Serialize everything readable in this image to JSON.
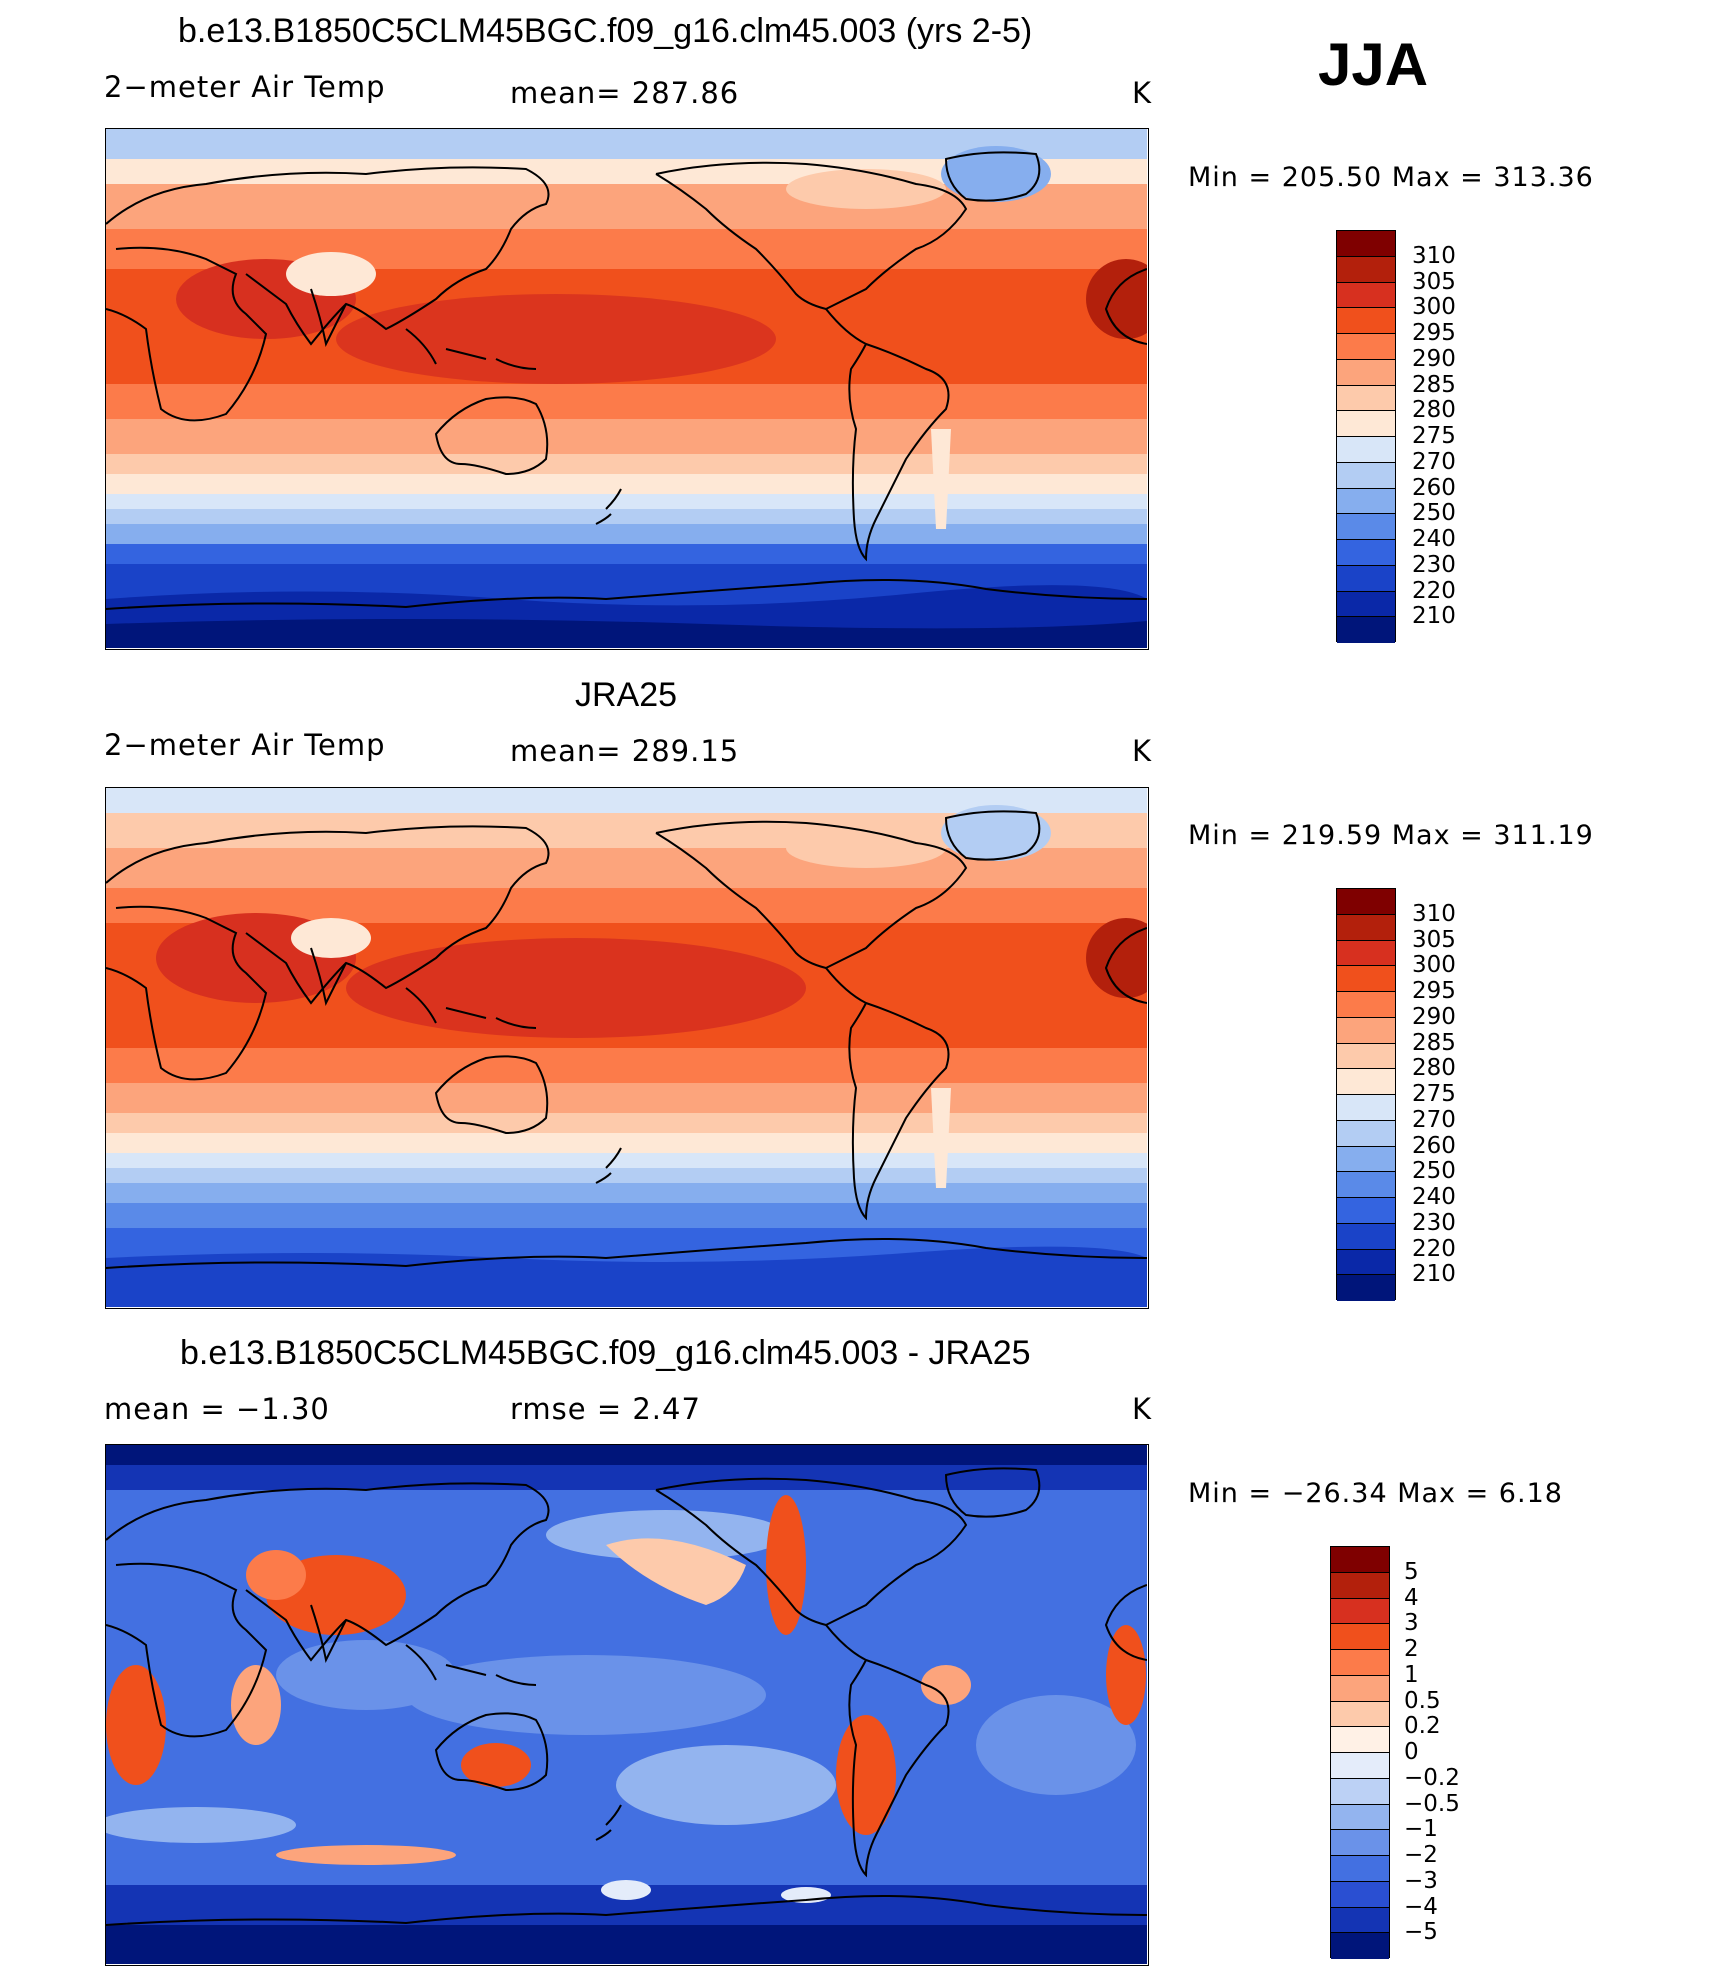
{
  "season": "JJA",
  "panels": [
    {
      "title": "b.e13.B1850C5CLM45BGC.f09_g16.clm45.003 (yrs 2-5)",
      "left_label": "2−meter Air Temp",
      "center_label": "mean=  287.86",
      "units": "K",
      "minmax": "Min  =  205.50  Max  =  313.36",
      "colorbar_labels": [
        "310",
        "305",
        "300",
        "295",
        "290",
        "285",
        "280",
        "275",
        "270",
        "260",
        "250",
        "240",
        "230",
        "220",
        "210"
      ]
    },
    {
      "title": "JRA25",
      "left_label": "2−meter Air Temp",
      "center_label": "mean=  289.15",
      "units": "K",
      "minmax": "Min  =  219.59  Max  =  311.19",
      "colorbar_labels": [
        "310",
        "305",
        "300",
        "295",
        "290",
        "285",
        "280",
        "275",
        "270",
        "260",
        "250",
        "240",
        "230",
        "220",
        "210"
      ]
    },
    {
      "title": "b.e13.B1850C5CLM45BGC.f09_g16.clm45.003 - JRA25",
      "left_label": "mean  =    −1.30",
      "center_label": "rmse  =     2.47",
      "units": "K",
      "minmax": "Min  =  −26.34  Max  =     6.18",
      "colorbar_labels": [
        "5",
        "4",
        "3",
        "2",
        "1",
        "0.5",
        "0.2",
        "0",
        "−0.2",
        "−0.5",
        "−1",
        "−2",
        "−3",
        "−4",
        "−5"
      ]
    }
  ],
  "colors": {
    "temp_scale": [
      "#7f0000",
      "#b3200c",
      "#d7301f",
      "#f0501c",
      "#fc7b4a",
      "#fca47c",
      "#fdcaab",
      "#fee8d6",
      "#d8e6f8",
      "#b3cdf3",
      "#86aeee",
      "#5a8ae8",
      "#3464e0",
      "#1a43c8",
      "#0a28a8",
      "#00157a"
    ],
    "diff_scale": [
      "#7f0000",
      "#b3200c",
      "#d7301f",
      "#f0501c",
      "#fc7b4a",
      "#fca47c",
      "#fdcaab",
      "#fff1e6",
      "#e4ecfa",
      "#bcd1f5",
      "#93b4ef",
      "#6a92e9",
      "#4370e1",
      "#2a4fd2",
      "#1434b4",
      "#00157a"
    ]
  }
}
